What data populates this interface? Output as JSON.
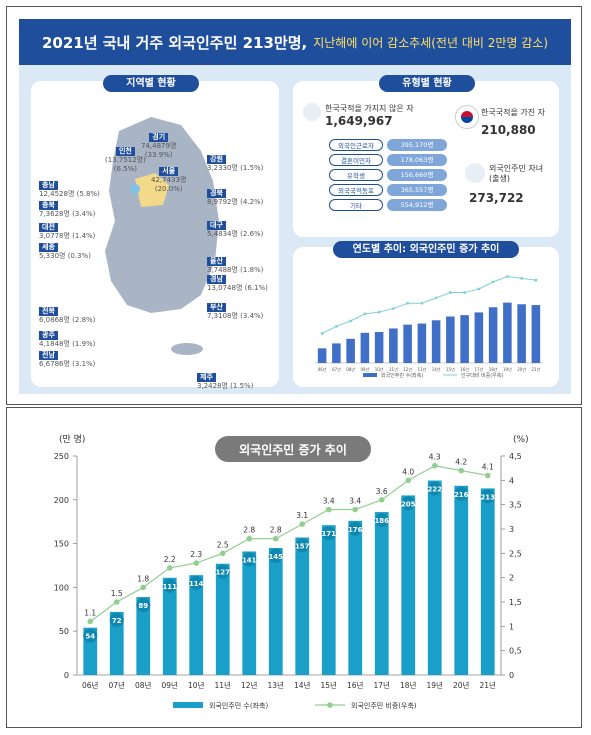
{
  "infographic": {
    "title": "2021년 국내 거주 외국인주민 213만명,",
    "subtitle": "지난해에 이어 감소추세(전년 대비 2만명 감소)",
    "regional_pill": "지역별 현황",
    "type_pill": "유형별 현황",
    "trend_pill": "연도별 추이: 외국인주민 증가 추이",
    "regions": [
      {
        "name": "경기",
        "value": "74,4879명",
        "pct": "(33.9%)"
      },
      {
        "name": "서울",
        "value": "42,7433명",
        "pct": "(20.0%)"
      },
      {
        "name": "인천",
        "value": "(13.7512명)",
        "pct": "(6.5%)"
      },
      {
        "name": "강원",
        "value": "3,2330명 (1.5%)"
      },
      {
        "name": "경북",
        "value": "8,9792명 (4.2%)"
      },
      {
        "name": "대구",
        "value": "5,4834명 (2.6%)"
      },
      {
        "name": "울산",
        "value": "3,7488명 (1.8%)"
      },
      {
        "name": "경남",
        "value": "13,0748명 (6.1%)"
      },
      {
        "name": "부산",
        "value": "7,3108명 (3.4%)"
      },
      {
        "name": "충남",
        "value": "12,4528명 (5.8%)"
      },
      {
        "name": "충북",
        "value": "7,3628명 (3.4%)"
      },
      {
        "name": "대전",
        "value": "3,0778명 (1.4%)"
      },
      {
        "name": "세종",
        "value": "5,330명 (0.3%)"
      },
      {
        "name": "전북",
        "value": "6,0868명 (2.8%)"
      },
      {
        "name": "광주",
        "value": "4,1848명 (1.9%)"
      },
      {
        "name": "전남",
        "value": "6,6786명 (3.1%)"
      },
      {
        "name": "제주",
        "value": "3,2428명 (1.5%)"
      }
    ],
    "types": {
      "no_nationality_label": "한국국적을 가지지 않은 자",
      "no_nationality_value": "1,649,967",
      "categories": [
        {
          "label": "외국인근로자",
          "value": "395,170명"
        },
        {
          "label": "결혼이민자",
          "value": "178,063명"
        },
        {
          "label": "유학생",
          "value": "156,660명"
        },
        {
          "label": "외국국적동포",
          "value": "365,557명"
        },
        {
          "label": "기타",
          "value": "554,912명"
        }
      ],
      "with_nationality_label": "한국국적을 가진 자",
      "with_nationality_value": "210,880",
      "children_label": "외국인주민 자녀",
      "children_sub": "(출생)",
      "children_value": "273,722"
    },
    "mini_legend": [
      "외국인주민 수(좌축)",
      "인구대비 비중(우축)"
    ]
  },
  "chart_data": {
    "type": "bar",
    "title": "외국인주민 증가 추이",
    "left_axis_unit": "(만 명)",
    "right_axis_unit": "(%)",
    "categories": [
      "06년",
      "07년",
      "08년",
      "09년",
      "10년",
      "11년",
      "12년",
      "13년",
      "14년",
      "15년",
      "16년",
      "17년",
      "18년",
      "19년",
      "20년",
      "21년"
    ],
    "series": [
      {
        "name": "외국인주민 수(좌축)",
        "type": "bar",
        "axis": "left",
        "values": [
          54,
          72,
          89,
          111,
          114,
          127,
          141,
          145,
          157,
          171,
          176,
          186,
          205,
          222,
          216,
          213
        ],
        "color": "#1aa0c8"
      },
      {
        "name": "외국인주민 비중(우축)",
        "type": "line",
        "axis": "right",
        "values": [
          1.1,
          1.5,
          1.8,
          2.2,
          2.3,
          2.5,
          2.8,
          2.8,
          3.1,
          3.4,
          3.4,
          3.6,
          4.0,
          4.3,
          4.2,
          4.1
        ],
        "color": "#90cf90"
      }
    ],
    "ylim_left": [
      0,
      250
    ],
    "yticks_left": [
      "0",
      "50",
      "100",
      "150",
      "200",
      "250"
    ],
    "ylim_right": [
      0,
      4.5
    ],
    "yticks_right": [
      "0",
      "0.5",
      "1",
      "1.5",
      "2",
      "2.5",
      "3",
      "3.5",
      "4",
      "4.5"
    ],
    "right_tick_labels": [
      "0",
      "0,5",
      "1",
      "1,5",
      "2",
      "2,5",
      "3",
      "3,5",
      "4",
      "4,5"
    ],
    "legend_position": "bottom"
  }
}
